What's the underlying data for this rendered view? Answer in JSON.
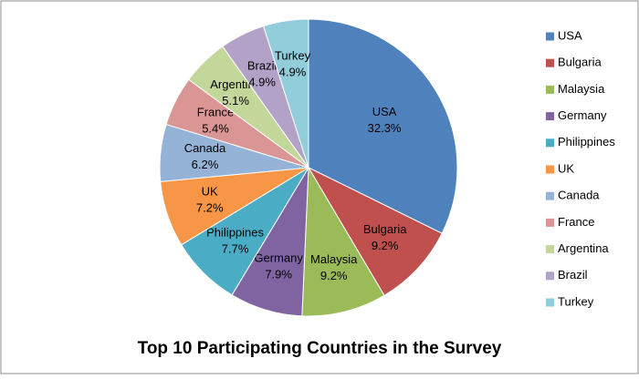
{
  "chart_data": {
    "type": "pie",
    "title": "Top 10 Participating Countries in the Survey",
    "categories": [
      "USA",
      "Bulgaria",
      "Malaysia",
      "Germany",
      "Philippines",
      "UK",
      "Canada",
      "France",
      "Argentina",
      "Brazil",
      "Turkey"
    ],
    "values": [
      32.3,
      9.2,
      9.2,
      7.9,
      7.7,
      7.2,
      6.2,
      5.4,
      5.1,
      4.9,
      4.9
    ],
    "value_labels": [
      "32.3%",
      "9.2%",
      "9.2%",
      "7.9%",
      "7.7%",
      "7.2%",
      "6.2%",
      "5.4%",
      "5.1%",
      "4.9%",
      "4.9%"
    ],
    "colors": [
      "#4f81bd",
      "#c0504d",
      "#9bbb59",
      "#8064a2",
      "#4bacc6",
      "#f79646",
      "#95b3d7",
      "#da9694",
      "#c4d79b",
      "#b3a2c7",
      "#92cddc"
    ],
    "legend": "right"
  }
}
